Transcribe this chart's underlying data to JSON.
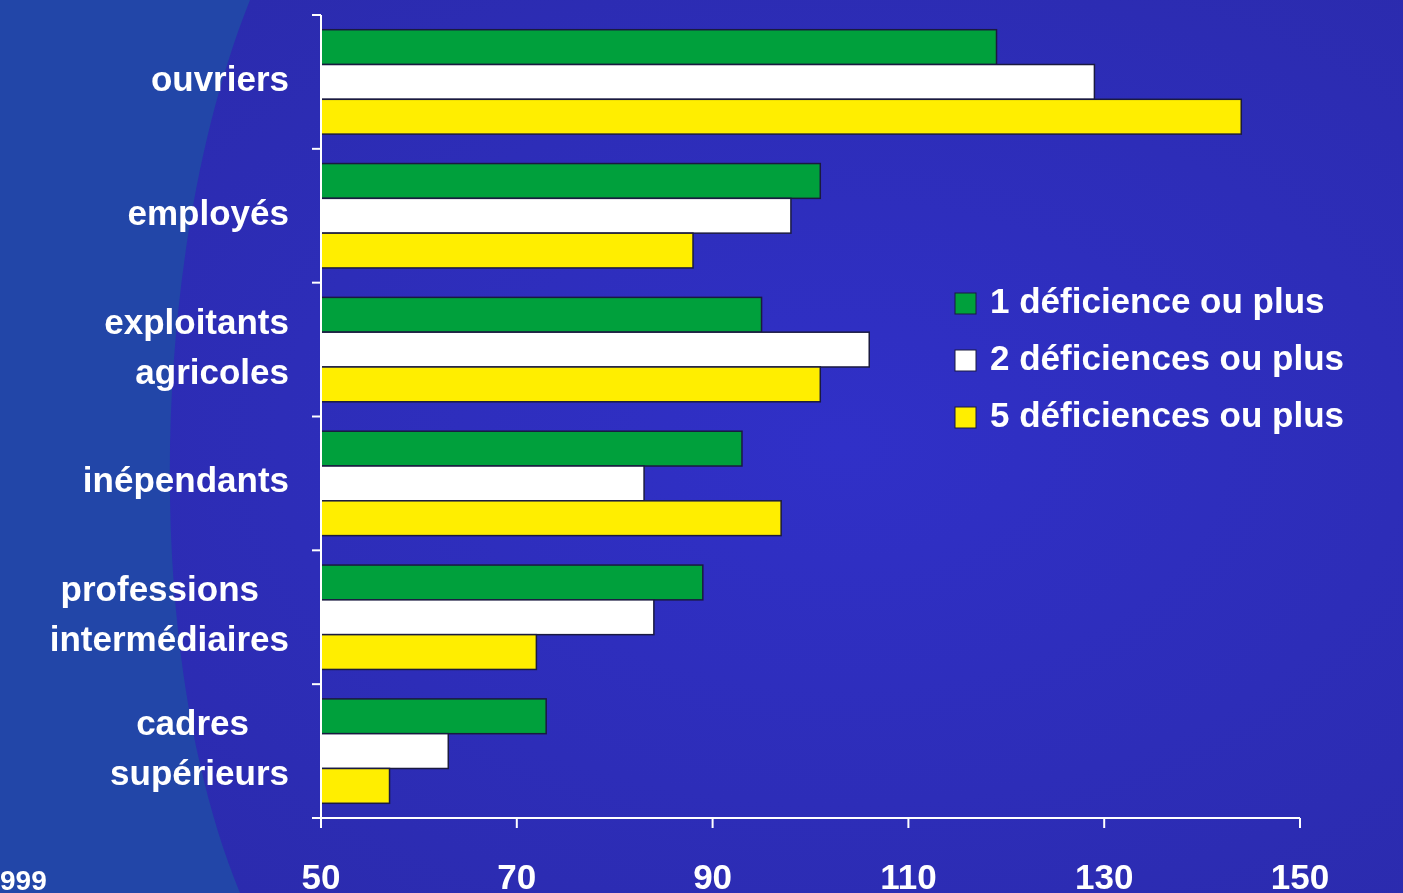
{
  "chart_data": {
    "type": "bar",
    "orientation": "horizontal",
    "categories": [
      "ouvriers",
      "employés",
      "exploitants agricoles",
      "inépendants",
      "professions intermédiaires",
      "cadres supérieurs"
    ],
    "series": [
      {
        "name": "1 déficience ou plus",
        "color": "#00a03c",
        "values": [
          119,
          101,
          95,
          93,
          89,
          73
        ]
      },
      {
        "name": "2 déficiences ou plus",
        "color": "#ffffff",
        "values": [
          129,
          98,
          106,
          83,
          84,
          63
        ]
      },
      {
        "name": "5 déficiences ou plus",
        "color": "#ffee00",
        "values": [
          144,
          88,
          101,
          97,
          72,
          57
        ]
      }
    ],
    "xlim": [
      50,
      150
    ],
    "xticks": [
      50,
      70,
      90,
      110,
      130,
      150
    ],
    "legend": "right",
    "grid": false,
    "annotations": [
      "999"
    ]
  }
}
